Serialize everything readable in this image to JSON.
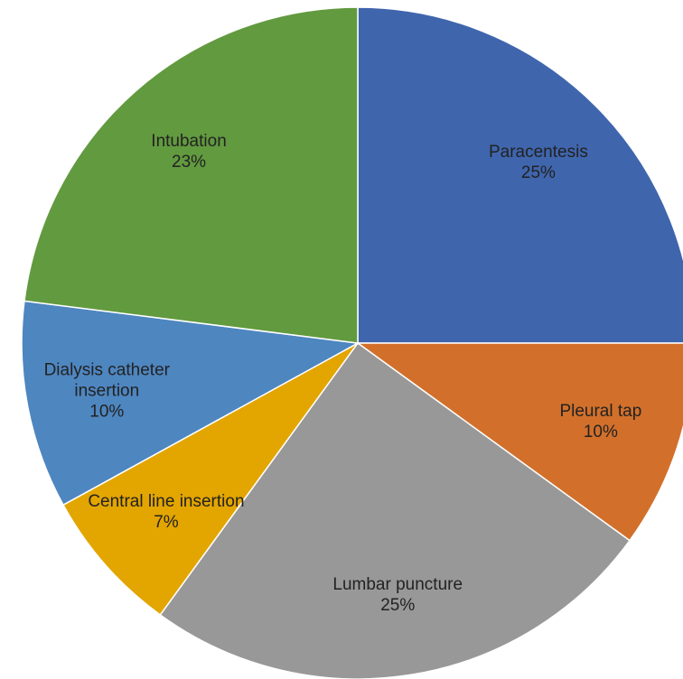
{
  "chart_data": {
    "type": "pie",
    "categories": [
      "Paracentesis",
      "Pleural tap",
      "Lumbar puncture",
      "Central line insertion",
      "Dialysis catheter insertion",
      "Intubation"
    ],
    "values": [
      25,
      10,
      25,
      7,
      10,
      23
    ],
    "value_labels": [
      "25%",
      "10%",
      "25%",
      "7%",
      "10%",
      "23%"
    ],
    "colors": [
      "#3f65ad",
      "#d2702b",
      "#989898",
      "#e3a500",
      "#4e86c0",
      "#629a3f"
    ]
  }
}
